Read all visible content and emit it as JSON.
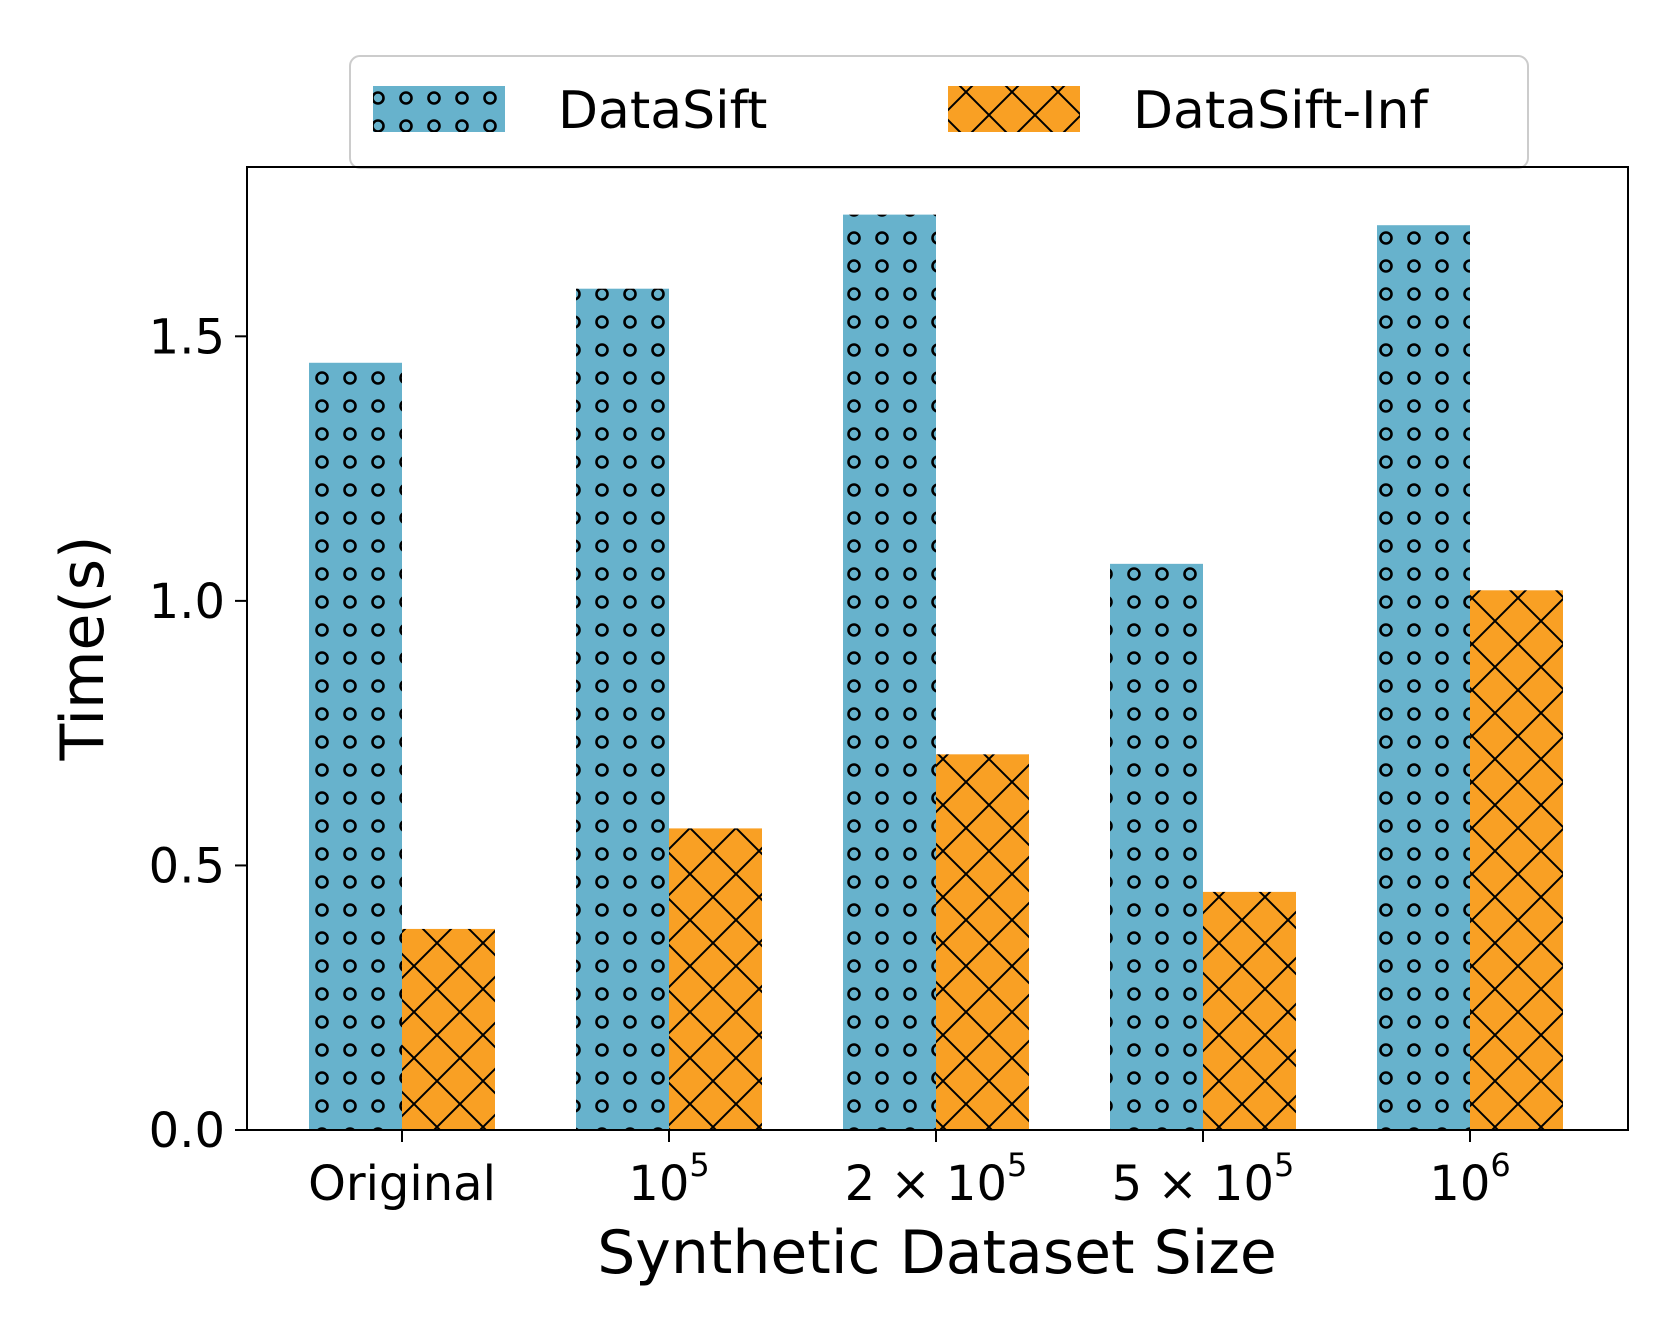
{
  "chart_data": {
    "type": "bar",
    "xlabel": "Synthetic Dataset Size",
    "ylabel": "Time(s)",
    "ylim": [
      0,
      1.82
    ],
    "yticks": [
      {
        "value": 0.0,
        "label": "0.0"
      },
      {
        "value": 0.5,
        "label": "0.5"
      },
      {
        "value": 1.0,
        "label": "1.0"
      },
      {
        "value": 1.5,
        "label": "1.5"
      }
    ],
    "categories": [
      {
        "base": "Original",
        "exp": ""
      },
      {
        "base": "10",
        "exp": "5"
      },
      {
        "base": "2 × 10",
        "exp": "5"
      },
      {
        "base": "5 × 10",
        "exp": "5"
      },
      {
        "base": "10",
        "exp": "6"
      }
    ],
    "series": [
      {
        "name": "DataSift",
        "color": "#67b2cc",
        "pattern": "circles",
        "values": [
          1.45,
          1.59,
          1.73,
          1.07,
          1.71
        ]
      },
      {
        "name": "DataSift-Inf",
        "color": "#f9a024",
        "pattern": "crosshatch",
        "values": [
          0.38,
          0.57,
          0.71,
          0.45,
          1.02
        ]
      }
    ],
    "legend": "top-center",
    "grid": false
  }
}
